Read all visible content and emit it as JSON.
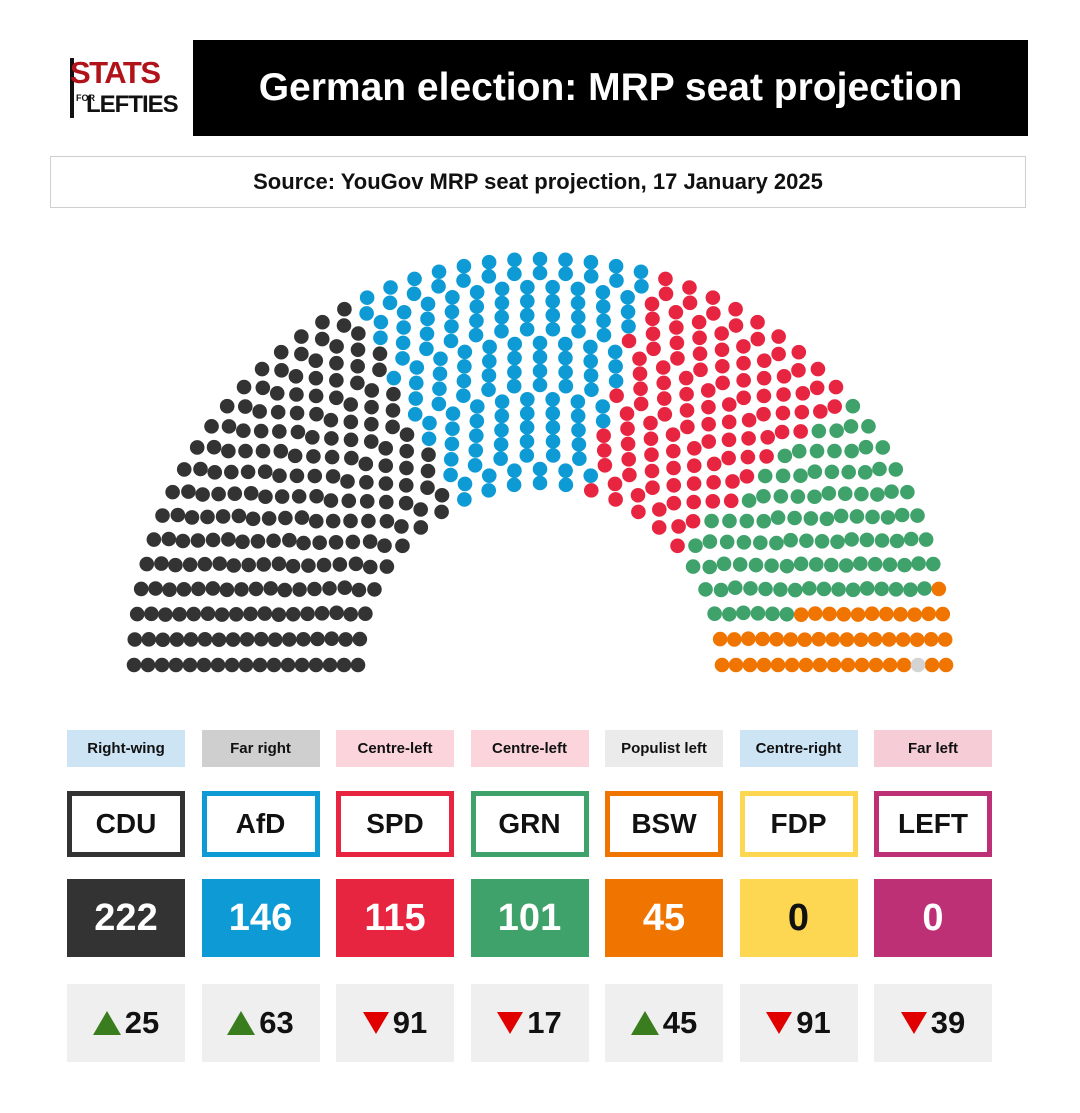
{
  "logo": {
    "line1": "STATS",
    "for": "FOR",
    "line2": "LEFTIES"
  },
  "title": "German election: MRP seat projection",
  "source": "Source: YouGov MRP seat projection, 17 January 2025",
  "chart_data": {
    "type": "parliament",
    "total_seats": 630,
    "order": [
      "CDU",
      "AfD",
      "SPD",
      "GRN",
      "BSW",
      "FDP",
      "LEFT",
      "Other"
    ],
    "series": [
      {
        "name": "CDU",
        "ideology": "Right-wing",
        "seats": 222,
        "change": 25,
        "direction": "up",
        "color": "#333333",
        "label_bg": "#cde4f4"
      },
      {
        "name": "AfD",
        "ideology": "Far right",
        "seats": 146,
        "change": 63,
        "direction": "up",
        "color": "#0e9bd5",
        "label_bg": "#cfcfcf"
      },
      {
        "name": "SPD",
        "ideology": "Centre-left",
        "seats": 115,
        "change": 91,
        "direction": "down",
        "color": "#e82541",
        "label_bg": "#fbd5db"
      },
      {
        "name": "GRN",
        "ideology": "Centre-left",
        "seats": 101,
        "change": 17,
        "direction": "down",
        "color": "#3fa26b",
        "label_bg": "#fbd5db"
      },
      {
        "name": "BSW",
        "ideology": "Populist left",
        "seats": 45,
        "change": 45,
        "direction": "up",
        "color": "#f07400",
        "label_bg": "#ebebeb"
      },
      {
        "name": "FDP",
        "ideology": "Centre-right",
        "seats": 0,
        "change": 91,
        "direction": "down",
        "color": "#fdd652",
        "label_bg": "#cde4f4"
      },
      {
        "name": "LEFT",
        "ideology": "Far left",
        "seats": 0,
        "change": 39,
        "direction": "down",
        "color": "#be3076",
        "label_bg": "#f6cdd7"
      }
    ],
    "other": {
      "seats": 1,
      "color": "#d3d3d3"
    },
    "seat_text_color": {
      "FDP": "#111111"
    }
  }
}
